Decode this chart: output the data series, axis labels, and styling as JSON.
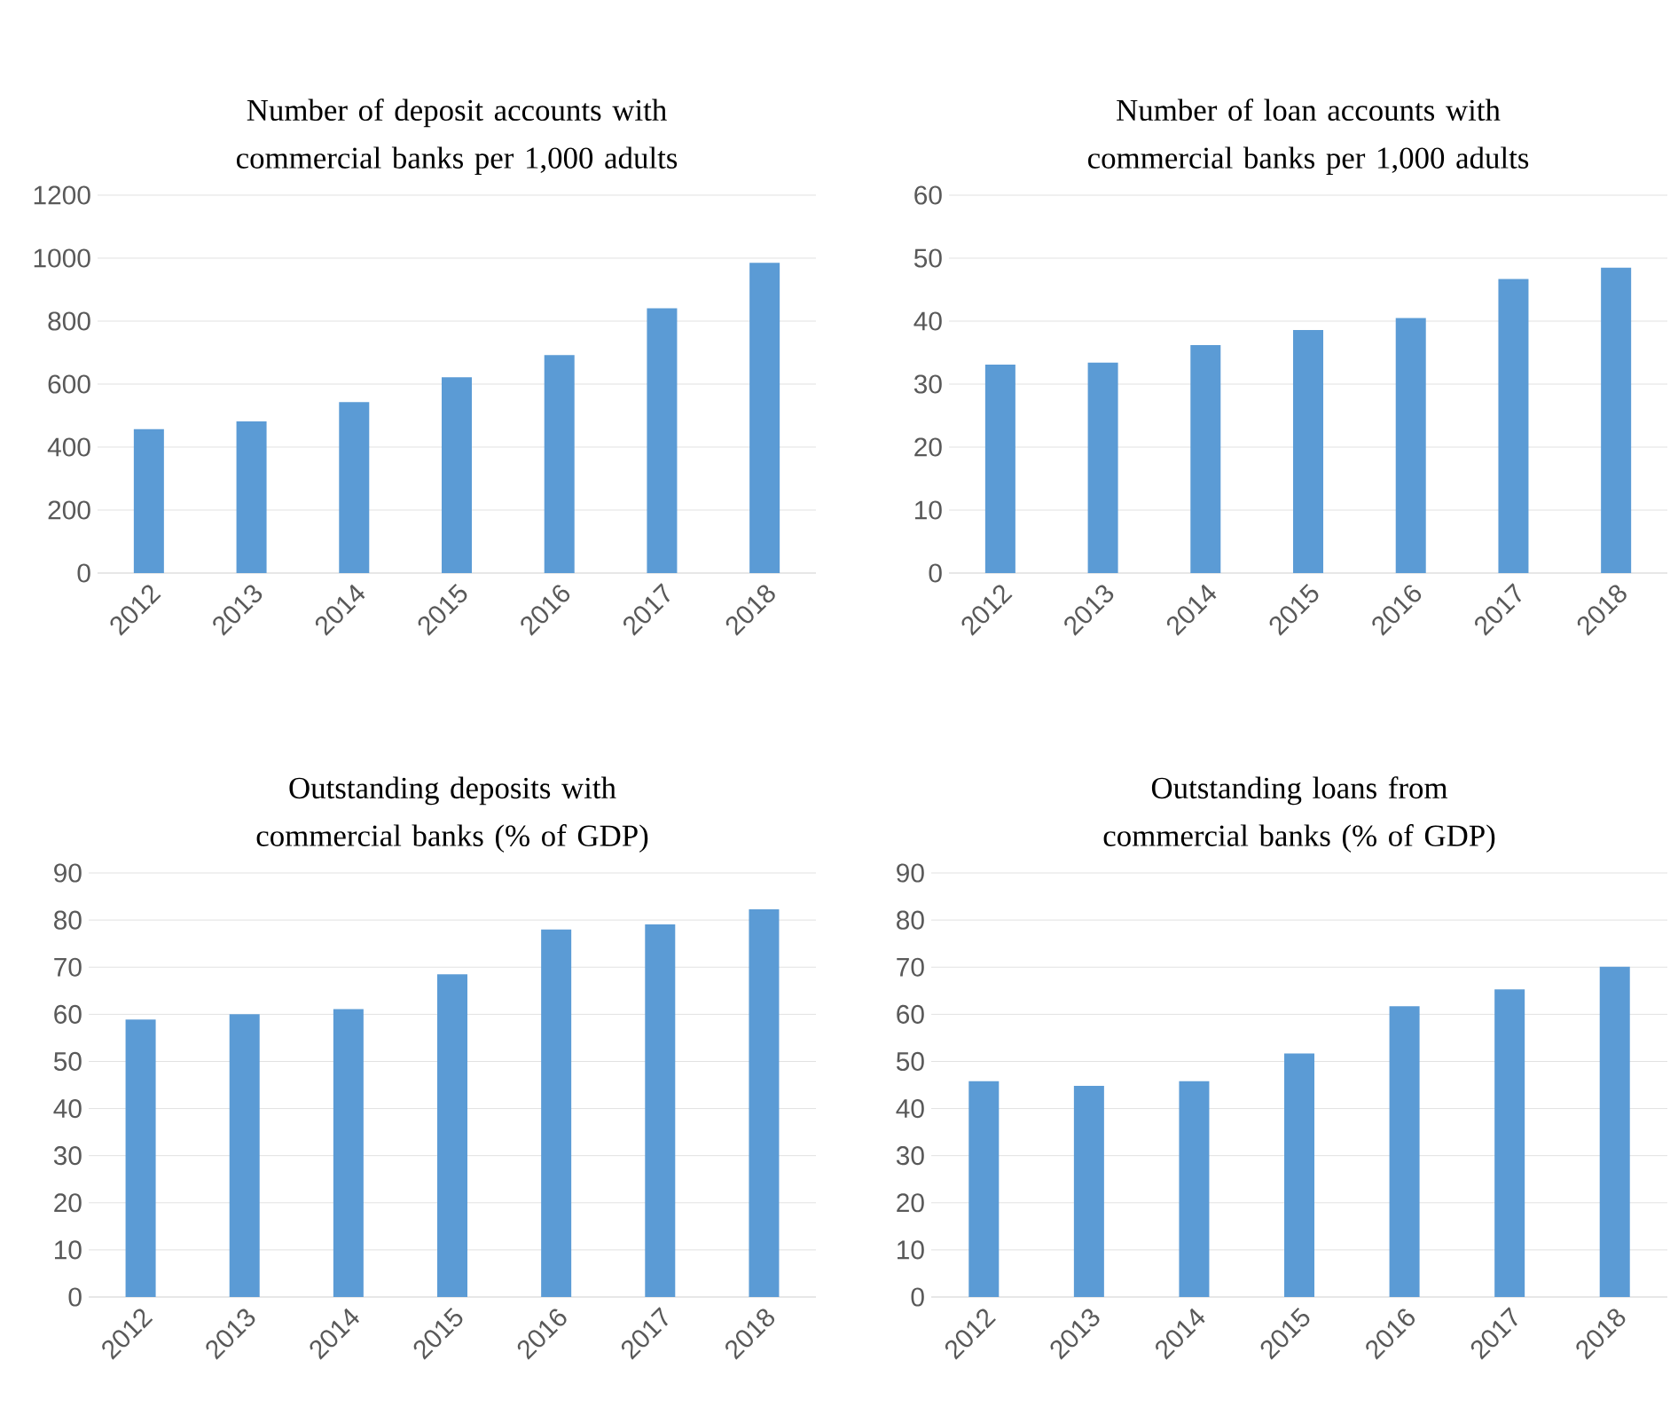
{
  "chart_data": [
    {
      "type": "bar",
      "title": "Number of deposit accounts with commercial banks per 1,000 adults",
      "categories": [
        "2012",
        "2013",
        "2014",
        "2015",
        "2016",
        "2017",
        "2018"
      ],
      "values": [
        457,
        482,
        543,
        622,
        692,
        841,
        985
      ],
      "color": "#5b9bd5",
      "ylim": [
        0,
        1200
      ],
      "yticks": [
        0,
        200,
        400,
        600,
        800,
        1000,
        1200
      ],
      "grid": "y"
    },
    {
      "type": "bar",
      "title": "Number of loan accounts with commercial banks per 1,000 adults",
      "categories": [
        "2012",
        "2013",
        "2014",
        "2015",
        "2016",
        "2017",
        "2018"
      ],
      "values": [
        33.1,
        33.4,
        36.2,
        38.6,
        40.5,
        46.7,
        48.5
      ],
      "color": "#5b9bd5",
      "ylim": [
        0,
        60
      ],
      "yticks": [
        0,
        10,
        20,
        30,
        40,
        50,
        60
      ],
      "grid": "y"
    },
    {
      "type": "bar",
      "title": "Outstanding deposits with commercial banks (% of GDP)",
      "categories": [
        "2012",
        "2013",
        "2014",
        "2015",
        "2016",
        "2017",
        "2018"
      ],
      "values": [
        58.9,
        60.0,
        61.1,
        68.5,
        78.0,
        79.1,
        82.3
      ],
      "color": "#5b9bd5",
      "ylim": [
        0,
        90
      ],
      "yticks": [
        0,
        10,
        20,
        30,
        40,
        50,
        60,
        70,
        80,
        90
      ],
      "grid": "y"
    },
    {
      "type": "bar",
      "title": "Outstanding loans from commercial banks (% of GDP)",
      "categories": [
        "2012",
        "2013",
        "2014",
        "2015",
        "2016",
        "2017",
        "2018"
      ],
      "values": [
        45.8,
        44.8,
        45.8,
        51.7,
        61.7,
        65.3,
        70.1
      ],
      "color": "#5b9bd5",
      "ylim": [
        0,
        90
      ],
      "yticks": [
        0,
        10,
        20,
        30,
        40,
        50,
        60,
        70,
        80,
        90
      ],
      "grid": "y"
    }
  ]
}
